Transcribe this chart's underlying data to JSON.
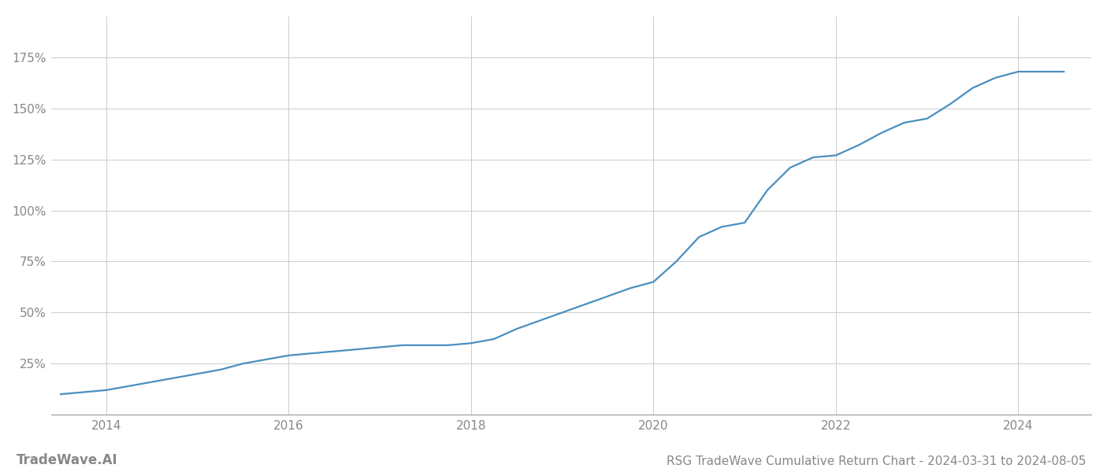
{
  "title": "RSG TradeWave Cumulative Return Chart - 2024-03-31 to 2024-08-05",
  "watermark": "TradeWave.AI",
  "line_color": "#4a8fc0",
  "background_color": "#ffffff",
  "grid_color": "#cccccc",
  "x_years": [
    2014,
    2016,
    2018,
    2020,
    2022,
    2024
  ],
  "x_data": [
    2013.5,
    2014.0,
    2014.25,
    2014.5,
    2014.75,
    2015.0,
    2015.25,
    2015.5,
    2015.75,
    2016.0,
    2016.25,
    2016.5,
    2016.75,
    2017.0,
    2017.25,
    2017.5,
    2017.75,
    2018.0,
    2018.25,
    2018.5,
    2018.75,
    2019.0,
    2019.25,
    2019.5,
    2019.75,
    2020.0,
    2020.25,
    2020.5,
    2020.75,
    2021.0,
    2021.25,
    2021.5,
    2021.75,
    2022.0,
    2022.25,
    2022.5,
    2022.75,
    2023.0,
    2023.25,
    2023.5,
    2023.75,
    2024.0,
    2024.25,
    2024.5
  ],
  "y_data": [
    10,
    12,
    14,
    16,
    18,
    20,
    22,
    25,
    27,
    29,
    30,
    31,
    32,
    33,
    34,
    34,
    34,
    35,
    37,
    42,
    46,
    50,
    54,
    58,
    62,
    65,
    75,
    87,
    92,
    94,
    110,
    121,
    126,
    127,
    132,
    138,
    143,
    145,
    152,
    160,
    165,
    168,
    168,
    168
  ],
  "ylim": [
    0,
    195
  ],
  "yticks": [
    25,
    50,
    75,
    100,
    125,
    150,
    175
  ],
  "ytick_labels": [
    "25%",
    "50%",
    "75%",
    "100%",
    "125%",
    "150%",
    "175%"
  ],
  "xlim": [
    2013.4,
    2024.8
  ],
  "line_width": 1.6,
  "title_fontsize": 11,
  "tick_fontsize": 11,
  "watermark_fontsize": 12,
  "axis_color": "#999999",
  "tick_color": "#888888",
  "spine_color": "#999999"
}
